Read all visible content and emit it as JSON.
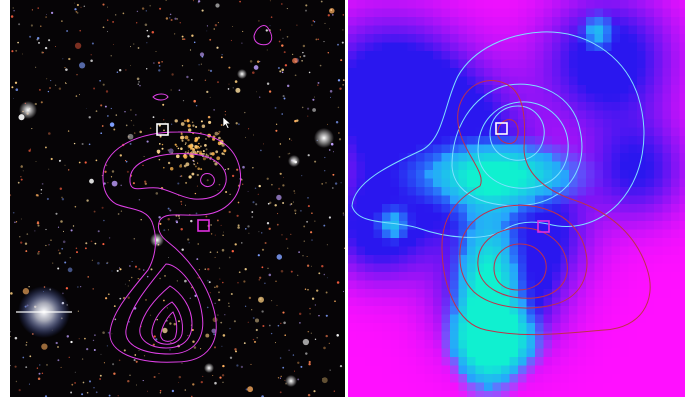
{
  "figure": {
    "panels": [
      {
        "name": "optical-color-image"
      },
      {
        "name": "galaxy-density-map"
      }
    ],
    "colors": {
      "optical_contour": "#e040e8",
      "density_contour_red": "#c0304a",
      "density_contour_cyan": "#7fe0ff",
      "marker_white": "#ffffff",
      "marker_magenta": "#e030e0",
      "map_low": "#2a17ef",
      "map_mid": "#ff10ff",
      "map_high": "#10f0d0"
    },
    "icons": [
      "square-marker-icon",
      "cursor-arrow-icon"
    ]
  }
}
